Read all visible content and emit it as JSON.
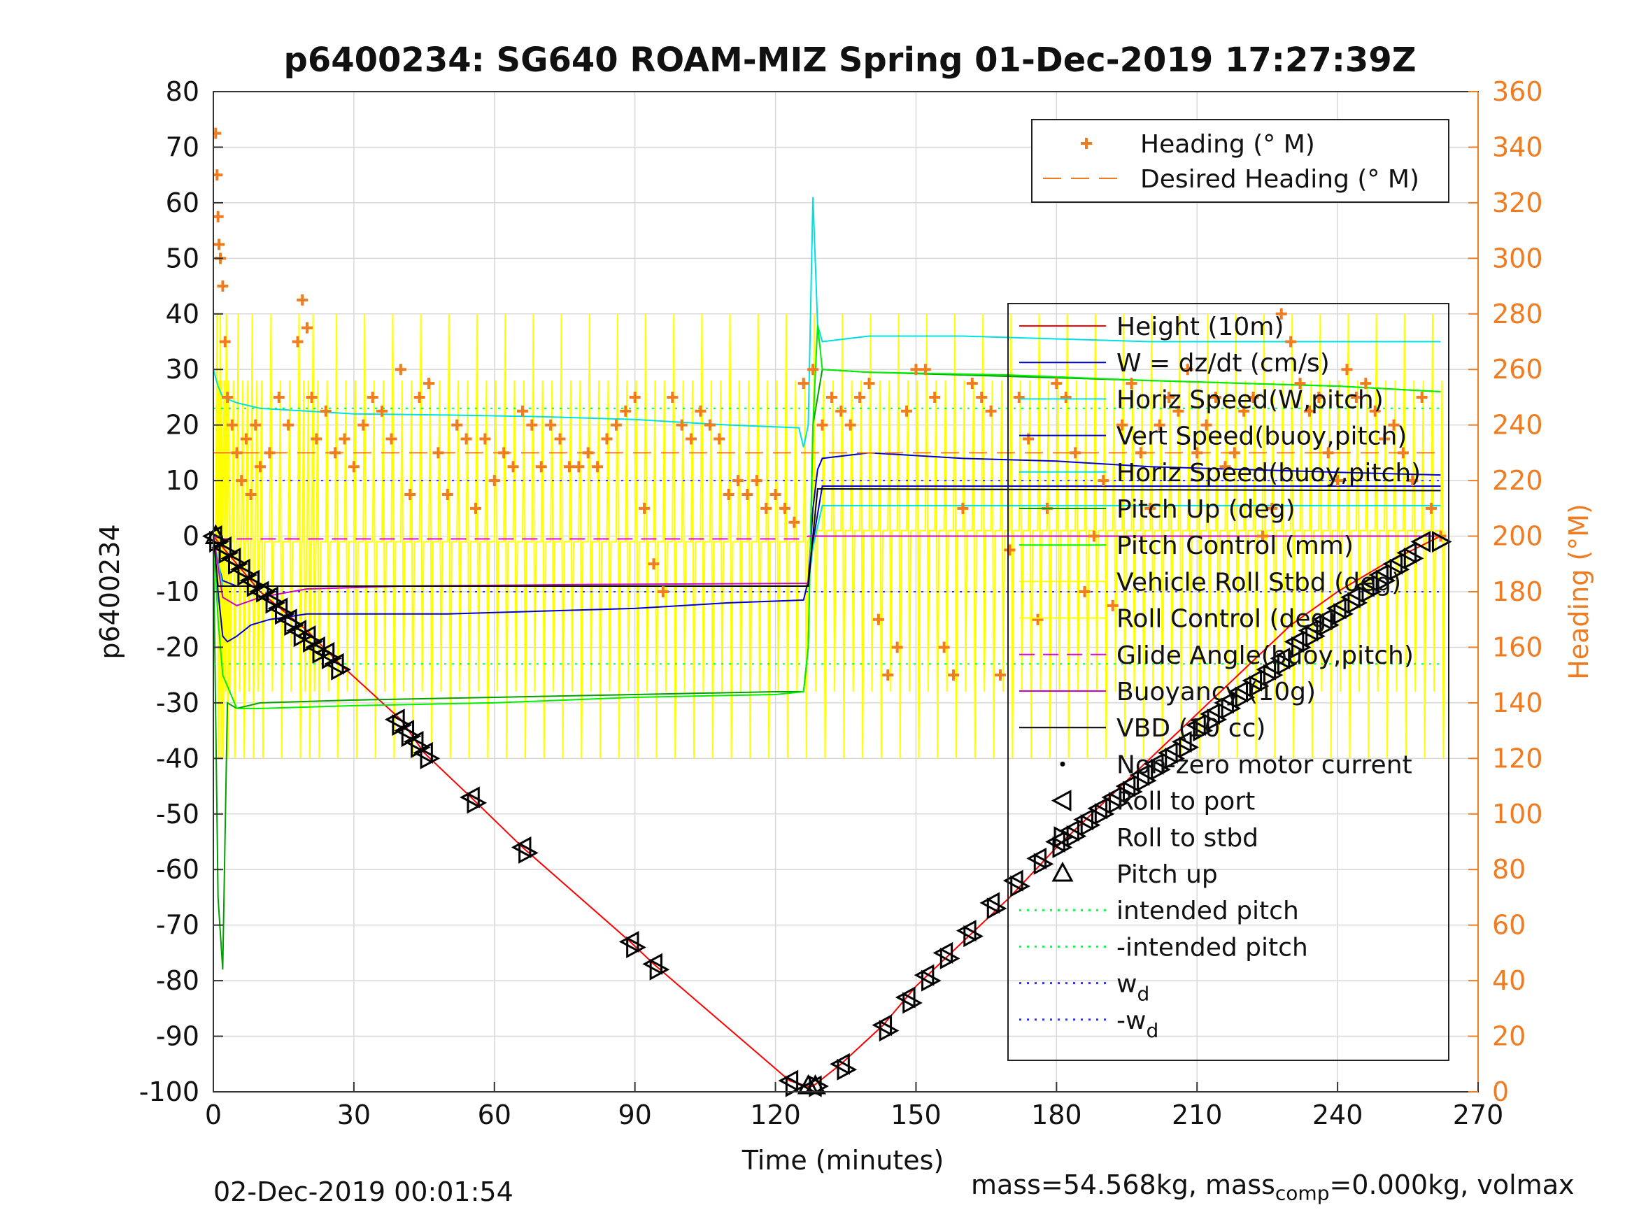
{
  "chart_data": {
    "type": "line",
    "title": "p6400234: SG640 ROAM-MIZ Spring 01-Dec-2019 17:27:39Z",
    "xlabel": "Time (minutes)",
    "ylabel": "p6400234",
    "y2label": "Heading (°M)",
    "xlim": [
      0,
      270
    ],
    "ylim": [
      -100,
      80
    ],
    "y2lim": [
      0,
      360
    ],
    "xticks": [
      "0",
      "30",
      "60",
      "90",
      "120",
      "150",
      "180",
      "210",
      "240",
      "270"
    ],
    "yticks": [
      "80",
      "70",
      "60",
      "50",
      "40",
      "30",
      "20",
      "10",
      "0",
      "-10",
      "-20",
      "-30",
      "-40",
      "-50",
      "-60",
      "-70",
      "-80",
      "-90",
      "-100"
    ],
    "y2ticks": [
      "360",
      "340",
      "320",
      "300",
      "280",
      "260",
      "240",
      "220",
      "200",
      "180",
      "160",
      "140",
      "120",
      "100",
      "80",
      "60",
      "40",
      "20",
      "0"
    ],
    "grid": true,
    "colors": {
      "heading": "#f07c22",
      "height": "#ff0000",
      "w": "#0000cc",
      "horiz": "#00e0e0",
      "pitch_up": "#00a000",
      "pitch_control": "#00ee00",
      "roll": "#ffff00",
      "glide": "#e000e0",
      "buoy": "#cc00cc",
      "vbd": "#000000",
      "wd": "#3030ff",
      "intended": "#00ff40"
    },
    "legend_heading": {
      "placement": "top-right",
      "entries": [
        "Heading (° M)",
        "Desired Heading (° M)"
      ]
    },
    "legend_main": {
      "placement": "right",
      "entries": [
        "Height (10m)",
        "W = dz/dt (cm/s)",
        "Horiz Speed(W,pitch)",
        "Vert Speed(buoy,pitch)",
        "Horiz Speed(buoy,pitch)",
        "Pitch Up (deg)",
        "Pitch Control (mm)",
        "Vehicle Roll Stbd (deg)",
        "Roll Control (deg)",
        "Glide Angle(buoy,pitch)",
        "Buoyancy (10g)",
        "VBD (10 cc)",
        "Non-zero motor current",
        "Roll to port",
        "Roll to stbd",
        "Pitch up",
        "intended pitch",
        "-intended pitch",
        "w_d",
        "-w_d"
      ]
    },
    "series": [
      {
        "name": "Height (10m)",
        "x": [
          0,
          10,
          20,
          27,
          40,
          45,
          55,
          66,
          89,
          94,
          123,
          127,
          128,
          134,
          143,
          150,
          160,
          170,
          180,
          190,
          200,
          210,
          220,
          230,
          240,
          250,
          262
        ],
        "y": [
          0,
          -10,
          -17,
          -23,
          -33,
          -39,
          -47,
          -56,
          -73,
          -77,
          -98,
          -99,
          -99,
          -95,
          -88,
          -81,
          -73,
          -65,
          -56,
          -48,
          -40,
          -32,
          -24,
          -16,
          -10,
          -5,
          0
        ]
      },
      {
        "name": "W = dz/dt (cm/s)",
        "x": [
          0,
          1,
          2,
          3,
          5,
          8,
          12,
          20,
          30,
          50,
          70,
          90,
          110,
          126,
          127,
          128,
          129,
          130,
          140,
          160,
          180,
          200,
          220,
          240,
          262
        ],
        "y": [
          0,
          -10,
          -18,
          -19,
          -18,
          -16,
          -15,
          -14,
          -14,
          -14,
          -13.5,
          -13,
          -12,
          -11.5,
          -8,
          5,
          12,
          14,
          15,
          14,
          13.5,
          12.5,
          12,
          11.5,
          11
        ]
      },
      {
        "name": "Horiz Speed(W,pitch)",
        "x": [
          0,
          1,
          2,
          5,
          10,
          20,
          30,
          50,
          70,
          90,
          110,
          125,
          126,
          127,
          128,
          129,
          130,
          140,
          160,
          200,
          240,
          262
        ],
        "y": [
          30,
          27,
          25,
          24,
          23,
          22.5,
          22,
          21.8,
          21.5,
          21,
          20,
          19.5,
          16,
          20,
          61,
          38,
          35,
          36,
          36,
          35,
          35,
          35
        ]
      },
      {
        "name": "Vert Speed(buoy,pitch)",
        "x": [
          0,
          1,
          2,
          5,
          10,
          30,
          60,
          90,
          120,
          127,
          128,
          130,
          262
        ],
        "y": [
          0,
          -5,
          -8,
          -9,
          -9,
          -9,
          -9,
          -9,
          -9,
          -9,
          -1,
          9,
          9
        ]
      },
      {
        "name": "Horiz Speed(buoy,pitch)",
        "x": [
          0,
          2,
          10,
          60,
          126,
          127,
          128,
          130,
          262
        ],
        "y": [
          0,
          -9,
          -9,
          -9,
          -9,
          -9,
          -2,
          5.5,
          5.5
        ]
      },
      {
        "name": "Pitch Up (deg)",
        "x": [
          0,
          1,
          2,
          3,
          5,
          10,
          30,
          60,
          90,
          120,
          126,
          127,
          128,
          130,
          140,
          160,
          200,
          240,
          262
        ],
        "y": [
          0,
          -65,
          -78,
          -30,
          -31,
          -30,
          -29.5,
          -29,
          -28.5,
          -28,
          -28,
          -20,
          20,
          30,
          29.5,
          29,
          28,
          27,
          26
        ]
      },
      {
        "name": "Pitch Control (mm)",
        "x": [
          0,
          1,
          2,
          5,
          10,
          30,
          60,
          90,
          120,
          126,
          127,
          128,
          129,
          130,
          140,
          170,
          200,
          240,
          262
        ],
        "y": [
          0,
          -15,
          -25,
          -31,
          -31,
          -30.5,
          -30,
          -29,
          -28.5,
          -28,
          -20,
          20,
          38,
          30,
          29.5,
          29,
          28,
          27,
          26
        ]
      },
      {
        "name": "Glide Angle(buoy,pitch)",
        "x": [
          0,
          2,
          126,
          127,
          262
        ],
        "y": [
          0,
          -0.5,
          -0.5,
          0,
          0
        ]
      },
      {
        "name": "Buoyancy (10g)",
        "x": [
          0,
          2,
          5,
          10,
          20,
          40,
          80,
          126,
          127,
          128,
          130,
          262
        ],
        "y": [
          0,
          -11,
          -12.5,
          -11,
          -9.5,
          -9,
          -8.7,
          -8.5,
          -8.5,
          0,
          0,
          0
        ]
      },
      {
        "name": "VBD (10 cc)",
        "x": [
          0,
          1,
          2,
          5,
          10,
          60,
          126,
          127,
          128,
          129,
          130,
          262
        ],
        "y": [
          0,
          -9,
          -9,
          -9,
          -9,
          -9,
          -9,
          -9,
          0,
          8.5,
          8.5,
          8.2
        ]
      },
      {
        "name": "intended pitch",
        "x": [
          0,
          262
        ],
        "y": [
          23,
          23
        ]
      },
      {
        "name": "-intended pitch",
        "x": [
          0,
          262
        ],
        "y": [
          -23,
          -23
        ]
      },
      {
        "name": "w_d",
        "x": [
          0,
          262
        ],
        "y": [
          10,
          10
        ]
      },
      {
        "name": "-w_d",
        "x": [
          0,
          262
        ],
        "y": [
          -10,
          -10
        ]
      }
    ],
    "desired_heading": {
      "x": [
        0,
        262
      ],
      "y": [
        230,
        230
      ]
    },
    "heading": {
      "x": [
        0.5,
        0.8,
        1,
        1.2,
        1.5,
        2,
        2.5,
        3,
        4,
        5,
        6,
        7,
        8,
        9,
        10,
        12,
        14,
        16,
        18,
        19,
        20,
        21,
        22,
        24,
        26,
        28,
        30,
        32,
        34,
        36,
        38,
        40,
        42,
        44,
        46,
        48,
        50,
        52,
        54,
        56,
        58,
        60,
        62,
        64,
        66,
        68,
        70,
        72,
        74,
        76,
        78,
        80,
        82,
        84,
        86,
        88,
        90,
        92,
        94,
        96,
        98,
        100,
        102,
        104,
        106,
        108,
        110,
        112,
        114,
        116,
        118,
        120,
        122,
        124,
        126,
        128,
        130,
        132,
        134,
        136,
        138,
        140,
        142,
        144,
        146,
        148,
        150,
        152,
        154,
        156,
        158,
        160,
        162,
        164,
        166,
        168,
        170,
        172,
        174,
        176,
        178,
        180,
        182,
        184,
        186,
        188,
        190,
        192,
        194,
        196,
        198,
        200,
        202,
        204,
        206,
        208,
        210,
        212,
        214,
        216,
        218,
        220,
        222,
        224,
        226,
        228,
        230,
        232,
        234,
        236,
        238,
        240,
        242,
        244,
        246,
        248,
        250,
        252,
        254,
        256,
        258,
        260,
        262
      ],
      "y": [
        345,
        330,
        315,
        305,
        300,
        290,
        270,
        250,
        240,
        230,
        220,
        235,
        215,
        240,
        225,
        230,
        250,
        240,
        270,
        285,
        275,
        250,
        235,
        245,
        230,
        235,
        225,
        240,
        250,
        245,
        235,
        260,
        215,
        250,
        255,
        230,
        215,
        240,
        235,
        210,
        235,
        220,
        230,
        225,
        245,
        240,
        225,
        240,
        235,
        225,
        225,
        230,
        225,
        235,
        240,
        245,
        250,
        210,
        190,
        180,
        250,
        240,
        235,
        245,
        240,
        235,
        215,
        220,
        215,
        220,
        210,
        215,
        210,
        205,
        255,
        260,
        240,
        250,
        245,
        240,
        250,
        255,
        170,
        150,
        160,
        245,
        260,
        260,
        250,
        160,
        150,
        210,
        255,
        250,
        245,
        150,
        195,
        250,
        235,
        170,
        210,
        255,
        250,
        230,
        180,
        200,
        220,
        175,
        240,
        255,
        230,
        210,
        240,
        250,
        245,
        260,
        230,
        240,
        250,
        225,
        230,
        245,
        250,
        200,
        210,
        280,
        270,
        255,
        245,
        250,
        230,
        220,
        260,
        250,
        255,
        245,
        235,
        240,
        230,
        220,
        250,
        210,
        200
      ]
    },
    "markers": {
      "roll_port": {
        "x": [
          0,
          2,
          4,
          6,
          8,
          10,
          12,
          14,
          16,
          18,
          20,
          22,
          24,
          26,
          39,
          41,
          43,
          45,
          55,
          66,
          89,
          94,
          123,
          128,
          134,
          143,
          148,
          152,
          156,
          161,
          166,
          171,
          176,
          180,
          183,
          186,
          189,
          192,
          195,
          198,
          201,
          204,
          207,
          210,
          213,
          216,
          219,
          222,
          225,
          228,
          231,
          234,
          237,
          240,
          243,
          246,
          249,
          252,
          255,
          258
        ],
        "y": [
          0,
          -2,
          -4,
          -6,
          -8,
          -10,
          -11,
          -13,
          -15,
          -17,
          -18,
          -20,
          -21,
          -23,
          -33,
          -35,
          -37,
          -39,
          -47,
          -56,
          -73,
          -77,
          -98,
          -99,
          -95,
          -88,
          -83,
          -79,
          -75,
          -71,
          -66,
          -62,
          -58,
          -55,
          -53,
          -51,
          -49,
          -47,
          -45,
          -43,
          -41,
          -39,
          -37,
          -34,
          -32,
          -30,
          -28,
          -26,
          -24,
          -22,
          -19,
          -17,
          -15,
          -13,
          -11,
          -9,
          -7,
          -5,
          -3,
          -1
        ]
      },
      "roll_stbd": {
        "x": [
          1,
          3,
          5,
          7,
          9,
          11,
          13,
          15,
          17,
          19,
          21,
          23,
          25,
          27,
          40,
          42,
          44,
          46,
          56,
          67,
          90,
          95,
          124,
          129,
          135,
          144,
          149,
          153,
          157,
          162,
          167,
          172,
          177,
          181,
          184,
          187,
          190,
          193,
          196,
          199,
          202,
          205,
          208,
          211,
          214,
          217,
          220,
          223,
          226,
          229,
          232,
          235,
          238,
          241,
          244,
          247,
          250,
          253,
          256,
          262
        ],
        "y": [
          -1,
          -3,
          -5,
          -7,
          -9,
          -10,
          -12,
          -14,
          -16,
          -18,
          -19,
          -21,
          -22,
          -24,
          -34,
          -36,
          -38,
          -40,
          -48,
          -57,
          -74,
          -78,
          -99,
          -99,
          -96,
          -89,
          -84,
          -80,
          -76,
          -72,
          -67,
          -63,
          -59,
          -56,
          -54,
          -52,
          -50,
          -48,
          -46,
          -44,
          -42,
          -40,
          -38,
          -35,
          -33,
          -31,
          -29,
          -27,
          -25,
          -23,
          -20,
          -18,
          -16,
          -14,
          -12,
          -10,
          -8,
          -6,
          -4,
          -1
        ]
      },
      "pitch_up": {
        "x": [
          0.5,
          127,
          128.5
        ],
        "y": [
          0,
          -99,
          -99
        ]
      }
    }
  },
  "footer": {
    "timestamp": "02-Dec-2019 00:01:54",
    "mass_prefix": "mass=54.568kg, mass",
    "mass_sub": "comp",
    "mass_suffix": "=0.000kg, volmax"
  }
}
